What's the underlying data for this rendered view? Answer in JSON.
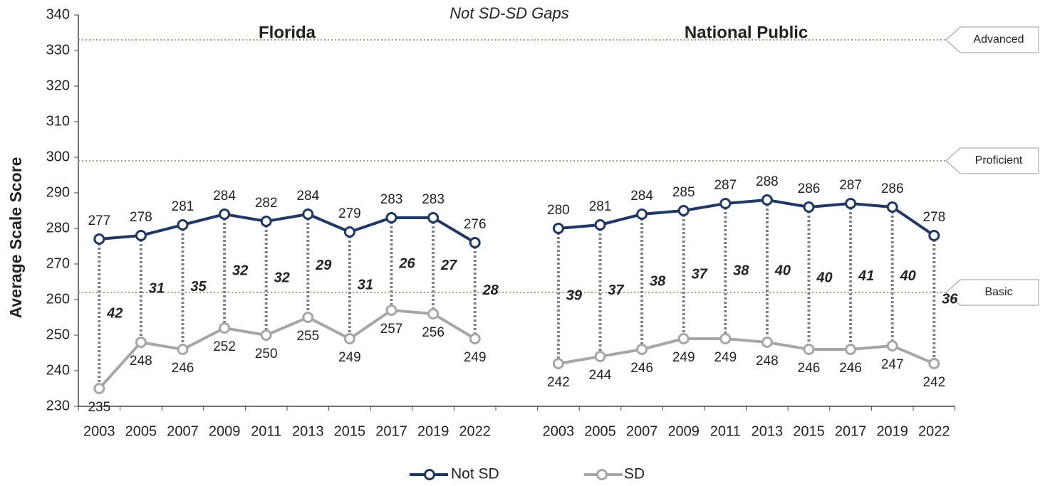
{
  "chart_data": {
    "type": "line",
    "title": "Not SD-SD Gaps",
    "y_label": "Average Scale Score",
    "ylim": [
      230,
      340
    ],
    "yticks": [
      230,
      240,
      250,
      260,
      270,
      280,
      290,
      300,
      310,
      320,
      330,
      340
    ],
    "series": [
      {
        "name": "Not SD",
        "color": "#1f3864"
      },
      {
        "name": "SD",
        "color": "#a6a6a6"
      }
    ],
    "levels": [
      {
        "label": "Advanced",
        "value": 333
      },
      {
        "label": "Proficient",
        "value": 299
      },
      {
        "label": "Basic",
        "value": 262
      }
    ],
    "panels": [
      {
        "title": "Florida",
        "categories": [
          "2003",
          "2005",
          "2007",
          "2009",
          "2011",
          "2013",
          "2015",
          "2017",
          "2019",
          "2022"
        ],
        "values": [
          [
            277,
            278,
            281,
            284,
            282,
            284,
            279,
            283,
            283,
            276
          ],
          [
            235,
            248,
            246,
            252,
            250,
            255,
            249,
            257,
            256,
            249
          ]
        ],
        "gaps": [
          42,
          31,
          35,
          32,
          32,
          29,
          31,
          26,
          27,
          28
        ]
      },
      {
        "title": "National Public",
        "categories": [
          "2003",
          "2005",
          "2007",
          "2009",
          "2011",
          "2013",
          "2015",
          "2017",
          "2019",
          "2022"
        ],
        "values": [
          [
            280,
            281,
            284,
            285,
            287,
            288,
            286,
            287,
            286,
            278
          ],
          [
            242,
            244,
            246,
            249,
            249,
            248,
            246,
            246,
            247,
            242
          ]
        ],
        "gaps": [
          39,
          37,
          38,
          37,
          38,
          40,
          40,
          41,
          40,
          36
        ]
      }
    ]
  }
}
